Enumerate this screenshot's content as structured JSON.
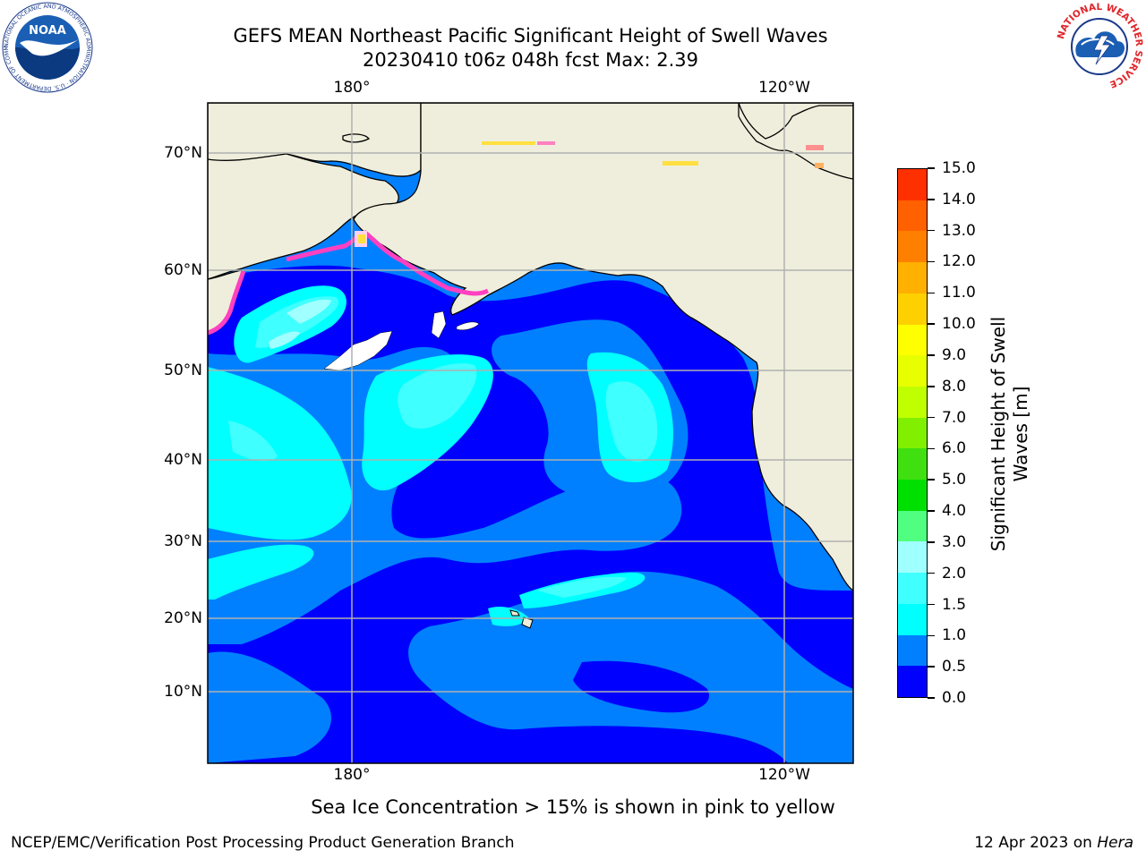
{
  "title_line1": "GEFS MEAN Northeast Pacific Significant Height of Swell Waves",
  "title_line2": "20230410 t06z 048h fcst   Max: 2.39",
  "longitude_ticks": [
    "180°",
    "120°W"
  ],
  "latitude_ticks": [
    "70°N",
    "60°N",
    "50°N",
    "40°N",
    "30°N",
    "20°N",
    "10°N"
  ],
  "colorbar": {
    "label": "Significant Height of Swell Waves [m]",
    "label_line1": "Significant Height of Swell",
    "label_line2": "Waves [m]",
    "tick_labels": [
      "0.0",
      "0.5",
      "1.0",
      "1.5",
      "2.0",
      "3.0",
      "4.0",
      "5.0",
      "6.0",
      "7.0",
      "8.0",
      "9.0",
      "10.0",
      "11.0",
      "12.0",
      "13.0",
      "14.0",
      "15.0"
    ],
    "colors": [
      "#0000ff",
      "#0080ff",
      "#00ffff",
      "#40ffff",
      "#a0ffff",
      "#50ff80",
      "#00e000",
      "#40e010",
      "#80f000",
      "#c0ff00",
      "#e8ff00",
      "#ffff00",
      "#ffd000",
      "#ffb000",
      "#ff8000",
      "#ff6000",
      "#ff3000"
    ]
  },
  "map_colors": {
    "land": "#efeedc",
    "ice_pink": "#ff40c0",
    "ice_yellow": "#ffe040",
    "grid": "#b0b0b0"
  },
  "ice_note": "Sea Ice Concentration > 15% is shown in pink to yellow",
  "footer_left": "NCEP/EMC/Verification Post Processing Product Generation Branch",
  "footer_right_prefix": "12 Apr 2023 on ",
  "footer_right_host": "Hera",
  "logos": {
    "left": "NOAA",
    "left_ring_text": "NATIONAL OCEANIC AND ATMOSPHERIC ADMINISTRATION · U.S. DEPARTMENT OF COMMERCE",
    "right_ring_text": "NATIONAL WEATHER SERVICE"
  }
}
